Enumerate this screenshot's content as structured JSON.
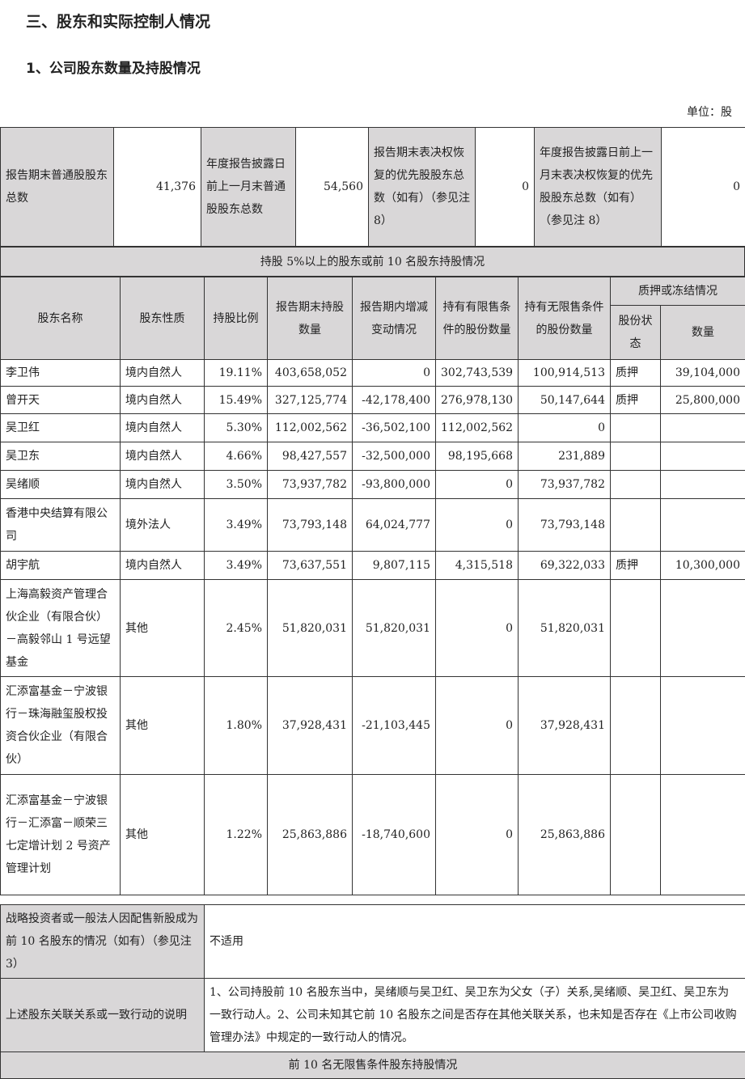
{
  "title": "三、股东和实际控制人情况",
  "subtitle": "1、公司股东数量及持股情况",
  "unit": "单位：股",
  "summary": {
    "l1": "报告期末普通股股东总数",
    "v1": "41,376",
    "l2": "年度报告披露日前上一月末普通股股东总数",
    "v2": "54,560",
    "l3": "报告期末表决权恢复的优先股股东总数（如有）（参见注 8）",
    "v3": "0",
    "l4": "年度报告披露日前上一月末表决权恢复的优先股股东总数（如有）（参见注 8）",
    "v4": "0"
  },
  "section_top10": "持股 5%以上的股东或前 10 名股东持股情况",
  "headers": {
    "name": "股东名称",
    "nature": "股东性质",
    "ratio": "持股比例",
    "held": "报告期末持股数量",
    "change": "报告期内增减变动情况",
    "restricted": "持有有限售条件的股份数量",
    "unrestricted": "持有无限售条件的股份数量",
    "pledge": "质押或冻结情况",
    "pledge_status": "股份状态",
    "pledge_qty": "数量"
  },
  "rows": [
    [
      "李卫伟",
      "境内自然人",
      "19.11%",
      "403,658,052",
      "0",
      "302,743,539",
      "100,914,513",
      "质押",
      "39,104,000"
    ],
    [
      "曾开天",
      "境内自然人",
      "15.49%",
      "327,125,774",
      "-42,178,400",
      "276,978,130",
      "50,147,644",
      "质押",
      "25,800,000"
    ],
    [
      "吴卫红",
      "境内自然人",
      "5.30%",
      "112,002,562",
      "-36,502,100",
      "112,002,562",
      "0",
      "",
      ""
    ],
    [
      "吴卫东",
      "境内自然人",
      "4.66%",
      "98,427,557",
      "-32,500,000",
      "98,195,668",
      "231,889",
      "",
      ""
    ],
    [
      "吴绪顺",
      "境内自然人",
      "3.50%",
      "73,937,782",
      "-93,800,000",
      "0",
      "73,937,782",
      "",
      ""
    ],
    [
      "香港中央结算有限公司",
      "境外法人",
      "3.49%",
      "73,793,148",
      "64,024,777",
      "0",
      "73,793,148",
      "",
      ""
    ],
    [
      "胡宇航",
      "境内自然人",
      "3.49%",
      "73,637,551",
      "9,807,115",
      "4,315,518",
      "69,322,033",
      "质押",
      "10,300,000"
    ],
    [
      "上海高毅资产管理合伙企业（有限合伙）－高毅邻山 1 号远望基金",
      "其他",
      "2.45%",
      "51,820,031",
      "51,820,031",
      "0",
      "51,820,031",
      "",
      ""
    ],
    [
      "汇添富基金－宁波银行－珠海融玺股权投资合伙企业（有限合伙）",
      "其他",
      "1.80%",
      "37,928,431",
      "-21,103,445",
      "0",
      "37,928,431",
      "",
      ""
    ],
    [
      "汇添富基金－宁波银行－汇添富－顺荣三七定增计划 2 号资产管理计划",
      "其他",
      "1.22%",
      "25,863,886",
      "-18,740,600",
      "0",
      "25,863,886",
      "",
      ""
    ]
  ],
  "strategic": {
    "label": "战略投资者或一般法人因配售新股成为前 10 名股东的情况（如有）（参见注 3）",
    "value": "不适用"
  },
  "relation": {
    "label": "上述股东关联关系或一致行动的说明",
    "value": "1、公司持股前 10 名股东当中，吴绪顺与吴卫红、吴卫东为父女（子）关系,吴绪顺、吴卫红、吴卫东为一致行动人。2、公司未知其它前 10 名股东之间是否存在其他关联关系，也未知是否存在《上市公司收购管理办法》中规定的一致行动人的情况。"
  },
  "section_unrestricted": "前 10 名无限售条件股东持股情况"
}
